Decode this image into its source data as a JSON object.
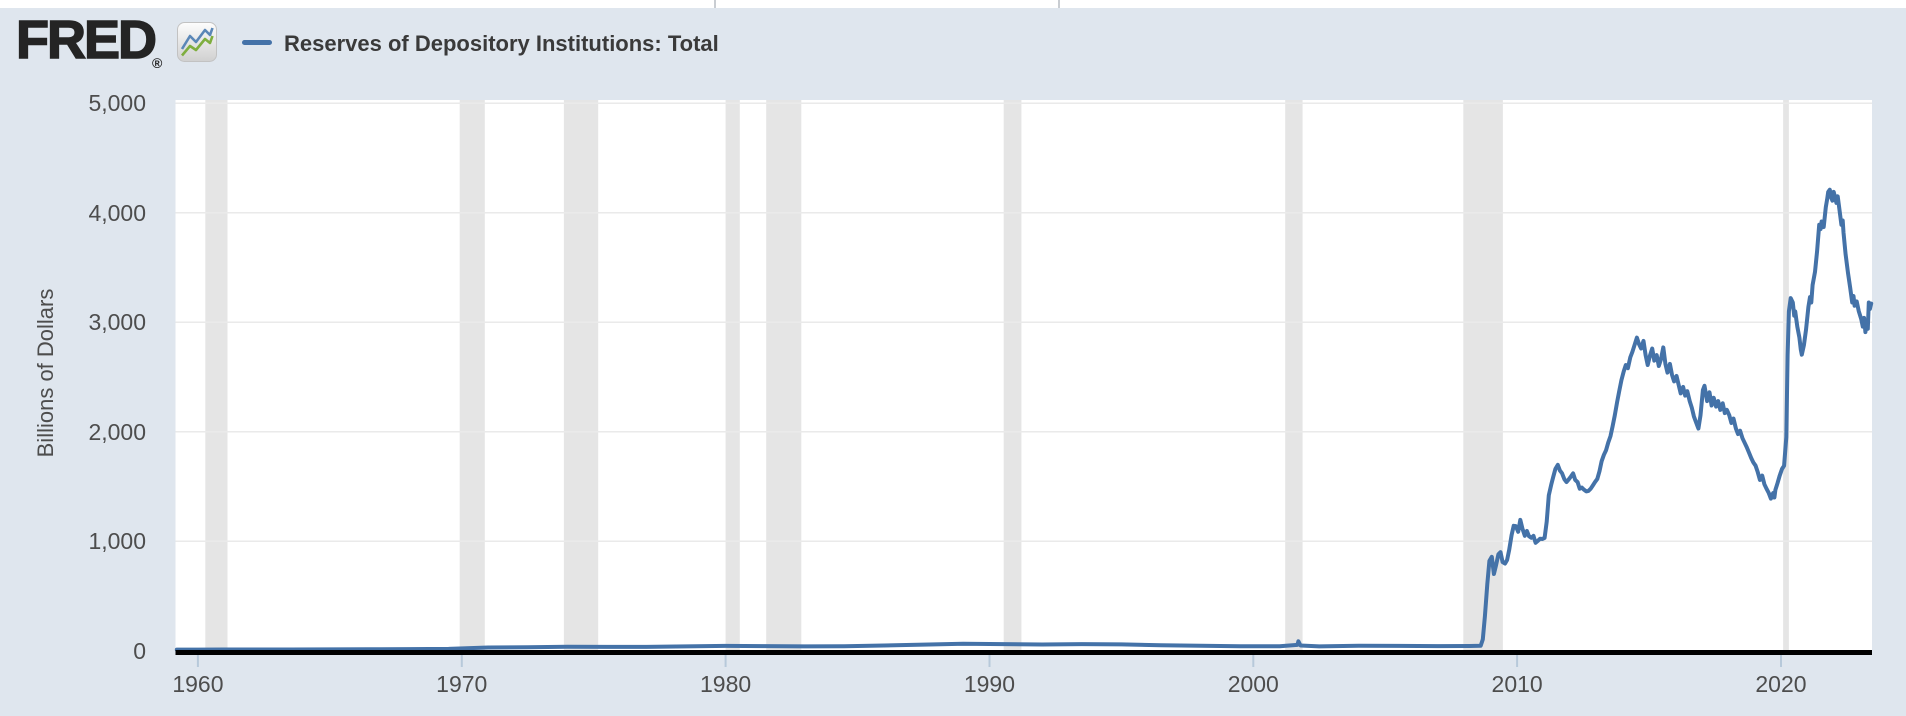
{
  "header": {
    "logo_text": "FRED",
    "registered_mark": "®",
    "legend": {
      "series_label": "Reserves of Depository Institutions: Total",
      "swatch_color": "#4472a8"
    }
  },
  "colors": {
    "page_background": "#dfe6ee",
    "plot_background": "#ffffff",
    "line": "#4472a8",
    "gridline": "#eaeaea",
    "recession_band": "#e5e5e5",
    "zero_axis": "#000000",
    "tick_mark": "#b7c9da",
    "tick_label": "#4d4d4d",
    "title_text": "#3a3a3a",
    "logo_text": "#242424",
    "icon_blue": "#5b87b7",
    "icon_green": "#7fae3f"
  },
  "chart_data": {
    "type": "line",
    "title": "Reserves of Depository Institutions: Total",
    "xlabel": "",
    "ylabel": "Billions of Dollars",
    "units": "Billions of Dollars",
    "grid": true,
    "legend_position": "top-left",
    "line_color": "#4472a8",
    "recession_shading_color": "#e5e5e5",
    "xlim": [
      1959.15,
      2023.45
    ],
    "ylim": [
      0,
      5000
    ],
    "y_ticks": [
      {
        "label": "5,000",
        "value": 5000
      },
      {
        "label": "4,000",
        "value": 4000
      },
      {
        "label": "3,000",
        "value": 3000
      },
      {
        "label": "2,000",
        "value": 2000
      },
      {
        "label": "1,000",
        "value": 1000
      },
      {
        "label": "0",
        "value": 0
      }
    ],
    "x_ticks": [
      {
        "label": "1960",
        "year": 1960
      },
      {
        "label": "1970",
        "year": 1970
      },
      {
        "label": "1980",
        "year": 1980
      },
      {
        "label": "1990",
        "year": 1990
      },
      {
        "label": "2000",
        "year": 2000
      },
      {
        "label": "2010",
        "year": 2010
      },
      {
        "label": "2020",
        "year": 2020
      }
    ],
    "recessions": [
      {
        "start": 1960.28,
        "end": 1961.12
      },
      {
        "start": 1969.92,
        "end": 1970.87
      },
      {
        "start": 1973.87,
        "end": 1975.17
      },
      {
        "start": 1980.0,
        "end": 1980.54
      },
      {
        "start": 1981.54,
        "end": 1982.87
      },
      {
        "start": 1990.54,
        "end": 1991.21
      },
      {
        "start": 2001.21,
        "end": 2001.87
      },
      {
        "start": 2007.96,
        "end": 2009.46
      },
      {
        "start": 2020.08,
        "end": 2020.3
      }
    ],
    "series": [
      {
        "name": "Reserves of Depository Institutions: Total",
        "points": [
          [
            1959.2,
            11.4
          ],
          [
            1960.0,
            11.2
          ],
          [
            1961.0,
            11.6
          ],
          [
            1962.0,
            11.9
          ],
          [
            1963.5,
            12.2
          ],
          [
            1965.0,
            13.0
          ],
          [
            1966.5,
            13.8
          ],
          [
            1968.0,
            15.2
          ],
          [
            1969.5,
            17.0
          ],
          [
            1971.0,
            30.0
          ],
          [
            1972.5,
            32.0
          ],
          [
            1974.0,
            36.9
          ],
          [
            1975.5,
            35.4
          ],
          [
            1977.0,
            36.0
          ],
          [
            1978.5,
            40.0
          ],
          [
            1980.0,
            44.3
          ],
          [
            1981.5,
            43.0
          ],
          [
            1983.0,
            40.1
          ],
          [
            1984.5,
            40.7
          ],
          [
            1986.0,
            48.8
          ],
          [
            1987.5,
            57.0
          ],
          [
            1989.0,
            63.5
          ],
          [
            1990.5,
            61.0
          ],
          [
            1992.0,
            57.5
          ],
          [
            1993.5,
            61.0
          ],
          [
            1995.0,
            58.0
          ],
          [
            1996.5,
            49.9
          ],
          [
            1998.0,
            45.8
          ],
          [
            1999.5,
            41.5
          ],
          [
            2001.0,
            40.9
          ],
          [
            2001.67,
            54.0
          ],
          [
            2001.71,
            87.0
          ],
          [
            2001.79,
            48.0
          ],
          [
            2002.5,
            40.6
          ],
          [
            2004.0,
            46.0
          ],
          [
            2005.5,
            45.0
          ],
          [
            2007.0,
            42.8
          ],
          [
            2008.2,
            43.9
          ],
          [
            2008.62,
            45.8
          ],
          [
            2008.7,
            104
          ],
          [
            2008.78,
            315
          ],
          [
            2008.87,
            609
          ],
          [
            2008.95,
            821
          ],
          [
            2009.04,
            858
          ],
          [
            2009.12,
            701
          ],
          [
            2009.2,
            780
          ],
          [
            2009.29,
            881
          ],
          [
            2009.37,
            900
          ],
          [
            2009.45,
            810
          ],
          [
            2009.54,
            796
          ],
          [
            2009.62,
            829
          ],
          [
            2009.7,
            922
          ],
          [
            2009.79,
            1056
          ],
          [
            2009.87,
            1141
          ],
          [
            2009.95,
            1139
          ],
          [
            2010.04,
            1087
          ],
          [
            2010.12,
            1195
          ],
          [
            2010.2,
            1117
          ],
          [
            2010.29,
            1050
          ],
          [
            2010.37,
            1094
          ],
          [
            2010.45,
            1046
          ],
          [
            2010.54,
            1032
          ],
          [
            2010.62,
            1049
          ],
          [
            2010.7,
            986
          ],
          [
            2010.79,
            1005
          ],
          [
            2010.87,
            1024
          ],
          [
            2010.95,
            1021
          ],
          [
            2011.04,
            1031
          ],
          [
            2011.12,
            1178
          ],
          [
            2011.2,
            1420
          ],
          [
            2011.29,
            1516
          ],
          [
            2011.37,
            1591
          ],
          [
            2011.45,
            1661
          ],
          [
            2011.54,
            1697
          ],
          [
            2011.62,
            1646
          ],
          [
            2011.7,
            1622
          ],
          [
            2011.79,
            1566
          ],
          [
            2011.87,
            1541
          ],
          [
            2011.95,
            1563
          ],
          [
            2012.04,
            1592
          ],
          [
            2012.12,
            1620
          ],
          [
            2012.2,
            1560
          ],
          [
            2012.29,
            1540
          ],
          [
            2012.37,
            1480
          ],
          [
            2012.45,
            1490
          ],
          [
            2012.54,
            1470
          ],
          [
            2012.62,
            1455
          ],
          [
            2012.7,
            1460
          ],
          [
            2012.79,
            1480
          ],
          [
            2012.87,
            1510
          ],
          [
            2012.95,
            1540
          ],
          [
            2013.04,
            1570
          ],
          [
            2013.12,
            1640
          ],
          [
            2013.2,
            1730
          ],
          [
            2013.29,
            1790
          ],
          [
            2013.37,
            1830
          ],
          [
            2013.45,
            1900
          ],
          [
            2013.54,
            1960
          ],
          [
            2013.62,
            2050
          ],
          [
            2013.7,
            2150
          ],
          [
            2013.79,
            2270
          ],
          [
            2013.87,
            2370
          ],
          [
            2013.95,
            2470
          ],
          [
            2014.04,
            2550
          ],
          [
            2014.12,
            2610
          ],
          [
            2014.2,
            2580
          ],
          [
            2014.29,
            2680
          ],
          [
            2014.37,
            2730
          ],
          [
            2014.45,
            2790
          ],
          [
            2014.54,
            2860
          ],
          [
            2014.62,
            2800
          ],
          [
            2014.7,
            2760
          ],
          [
            2014.79,
            2830
          ],
          [
            2014.87,
            2700
          ],
          [
            2014.95,
            2610
          ],
          [
            2015.04,
            2700
          ],
          [
            2015.12,
            2760
          ],
          [
            2015.2,
            2650
          ],
          [
            2015.29,
            2700
          ],
          [
            2015.37,
            2600
          ],
          [
            2015.45,
            2660
          ],
          [
            2015.54,
            2770
          ],
          [
            2015.62,
            2620
          ],
          [
            2015.7,
            2540
          ],
          [
            2015.79,
            2620
          ],
          [
            2015.87,
            2520
          ],
          [
            2015.95,
            2460
          ],
          [
            2016.04,
            2510
          ],
          [
            2016.12,
            2430
          ],
          [
            2016.2,
            2350
          ],
          [
            2016.29,
            2410
          ],
          [
            2016.37,
            2330
          ],
          [
            2016.45,
            2370
          ],
          [
            2016.54,
            2280
          ],
          [
            2016.62,
            2220
          ],
          [
            2016.7,
            2140
          ],
          [
            2016.79,
            2080
          ],
          [
            2016.87,
            2030
          ],
          [
            2016.95,
            2150
          ],
          [
            2017.04,
            2380
          ],
          [
            2017.1,
            2420
          ],
          [
            2017.2,
            2280
          ],
          [
            2017.29,
            2360
          ],
          [
            2017.37,
            2240
          ],
          [
            2017.45,
            2310
          ],
          [
            2017.54,
            2230
          ],
          [
            2017.62,
            2280
          ],
          [
            2017.7,
            2200
          ],
          [
            2017.79,
            2260
          ],
          [
            2017.87,
            2170
          ],
          [
            2017.95,
            2200
          ],
          [
            2018.04,
            2150
          ],
          [
            2018.12,
            2080
          ],
          [
            2018.2,
            2120
          ],
          [
            2018.29,
            2030
          ],
          [
            2018.37,
            1980
          ],
          [
            2018.45,
            2010
          ],
          [
            2018.54,
            1940
          ],
          [
            2018.62,
            1900
          ],
          [
            2018.7,
            1860
          ],
          [
            2018.79,
            1810
          ],
          [
            2018.87,
            1760
          ],
          [
            2018.95,
            1720
          ],
          [
            2019.04,
            1690
          ],
          [
            2019.12,
            1630
          ],
          [
            2019.2,
            1560
          ],
          [
            2019.29,
            1600
          ],
          [
            2019.37,
            1520
          ],
          [
            2019.45,
            1480
          ],
          [
            2019.54,
            1440
          ],
          [
            2019.62,
            1390
          ],
          [
            2019.7,
            1440
          ],
          [
            2019.75,
            1400
          ],
          [
            2019.79,
            1470
          ],
          [
            2019.87,
            1530
          ],
          [
            2019.95,
            1600
          ],
          [
            2020.04,
            1660
          ],
          [
            2020.12,
            1690
          ],
          [
            2020.2,
            1950
          ],
          [
            2020.25,
            2700
          ],
          [
            2020.3,
            3100
          ],
          [
            2020.37,
            3220
          ],
          [
            2020.45,
            3180
          ],
          [
            2020.5,
            3060
          ],
          [
            2020.54,
            3100
          ],
          [
            2020.62,
            2960
          ],
          [
            2020.7,
            2860
          ],
          [
            2020.75,
            2750
          ],
          [
            2020.79,
            2704
          ],
          [
            2020.87,
            2790
          ],
          [
            2020.95,
            2930
          ],
          [
            2021.04,
            3140
          ],
          [
            2021.1,
            3230
          ],
          [
            2021.15,
            3180
          ],
          [
            2021.2,
            3340
          ],
          [
            2021.29,
            3460
          ],
          [
            2021.37,
            3650
          ],
          [
            2021.45,
            3890
          ],
          [
            2021.5,
            3850
          ],
          [
            2021.54,
            3920
          ],
          [
            2021.62,
            3870
          ],
          [
            2021.7,
            4050
          ],
          [
            2021.75,
            4120
          ],
          [
            2021.79,
            4190
          ],
          [
            2021.85,
            4210
          ],
          [
            2021.9,
            4140
          ],
          [
            2021.95,
            4110
          ],
          [
            2022.0,
            4190
          ],
          [
            2022.04,
            4150
          ],
          [
            2022.1,
            4090
          ],
          [
            2022.15,
            4150
          ],
          [
            2022.2,
            4060
          ],
          [
            2022.29,
            3890
          ],
          [
            2022.34,
            3930
          ],
          [
            2022.37,
            3820
          ],
          [
            2022.45,
            3620
          ],
          [
            2022.54,
            3450
          ],
          [
            2022.62,
            3320
          ],
          [
            2022.7,
            3180
          ],
          [
            2022.75,
            3240
          ],
          [
            2022.79,
            3150
          ],
          [
            2022.87,
            3190
          ],
          [
            2022.95,
            3100
          ],
          [
            2023.04,
            3030
          ],
          [
            2023.1,
            2960
          ],
          [
            2023.15,
            3040
          ],
          [
            2023.2,
            2910
          ],
          [
            2023.25,
            2990
          ],
          [
            2023.29,
            2940
          ],
          [
            2023.33,
            3180
          ],
          [
            2023.37,
            3120
          ],
          [
            2023.42,
            3170
          ]
        ]
      }
    ]
  }
}
